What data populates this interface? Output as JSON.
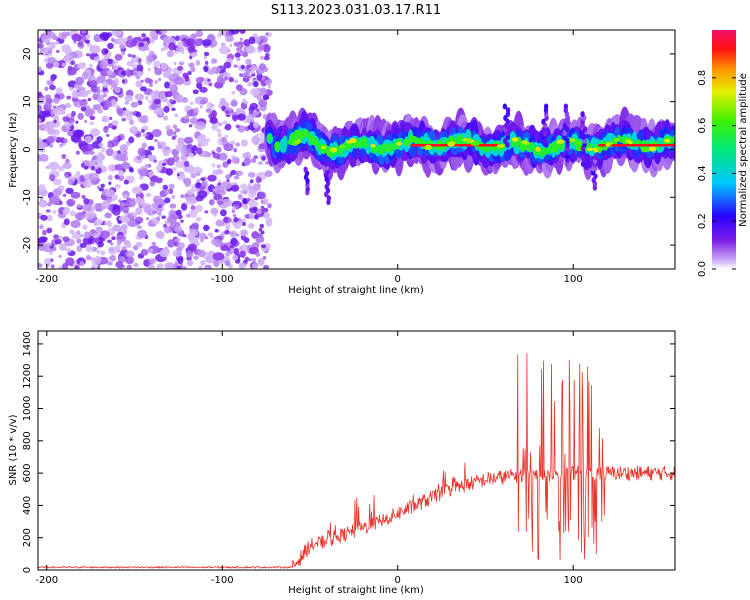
{
  "title": "S113.2023.031.03.17.R11",
  "colors": {
    "snr_line": "#e8332b",
    "noise_purple": "#7a1fe6",
    "frame": "#000000"
  },
  "chart_data": [
    {
      "type": "heatmap",
      "xlabel": "Height of straight line (km)",
      "ylabel": "Frequency (Hz)",
      "xlim": [
        -205,
        158
      ],
      "ylim": [
        -25,
        25
      ],
      "xticks": [
        -200,
        -100,
        0,
        100
      ],
      "xtick_labels": [
        "-200",
        "-100",
        "0",
        "100"
      ],
      "yticks": [
        -20,
        -10,
        0,
        10,
        20
      ],
      "ytick_labels": [
        "-20",
        "-10",
        "0",
        "10",
        "20"
      ],
      "colorbar": {
        "label": "Normalized spectral amplitude",
        "range": [
          0,
          1
        ],
        "ticks": [
          0.0,
          0.2,
          0.4,
          0.6,
          0.8
        ],
        "tick_labels": [
          "0.0",
          "0.2",
          "0.4",
          "0.6",
          "0.8"
        ],
        "colormap": "rainbow (white-purple-blue-cyan-green-yellow-red-magenta)"
      },
      "noise_region_x": [
        -205,
        -73
      ],
      "signal_band": {
        "x": [
          -73,
          158
        ],
        "freq_center_hz": 1,
        "freq_halfwidth_hz": 4
      },
      "red_ridge_segments": [
        [
          8,
          58
        ],
        [
          115,
          158
        ]
      ],
      "grid": false
    },
    {
      "type": "line",
      "xlabel": "Height of straight line (km)",
      "ylabel": "SNR (10 * v/v)",
      "xlim": [
        -205,
        158
      ],
      "ylim": [
        0,
        1480
      ],
      "xticks": [
        -200,
        -100,
        0,
        100
      ],
      "xtick_labels": [
        "-200",
        "-100",
        "0",
        "100"
      ],
      "yticks": [
        0,
        200,
        400,
        600,
        800,
        1000,
        1200,
        1400
      ],
      "ytick_labels": [
        "0",
        "200",
        "400",
        "600",
        "800",
        "1000",
        "1200",
        "1400"
      ],
      "series_color": "#e8332b",
      "trend_points_x": [
        -205,
        -60,
        -50,
        -30,
        -10,
        10,
        30,
        50,
        70,
        100,
        120,
        158
      ],
      "trend_points_y": [
        15,
        15,
        150,
        220,
        300,
        400,
        500,
        560,
        590,
        600,
        600,
        600
      ],
      "grid": false
    }
  ]
}
